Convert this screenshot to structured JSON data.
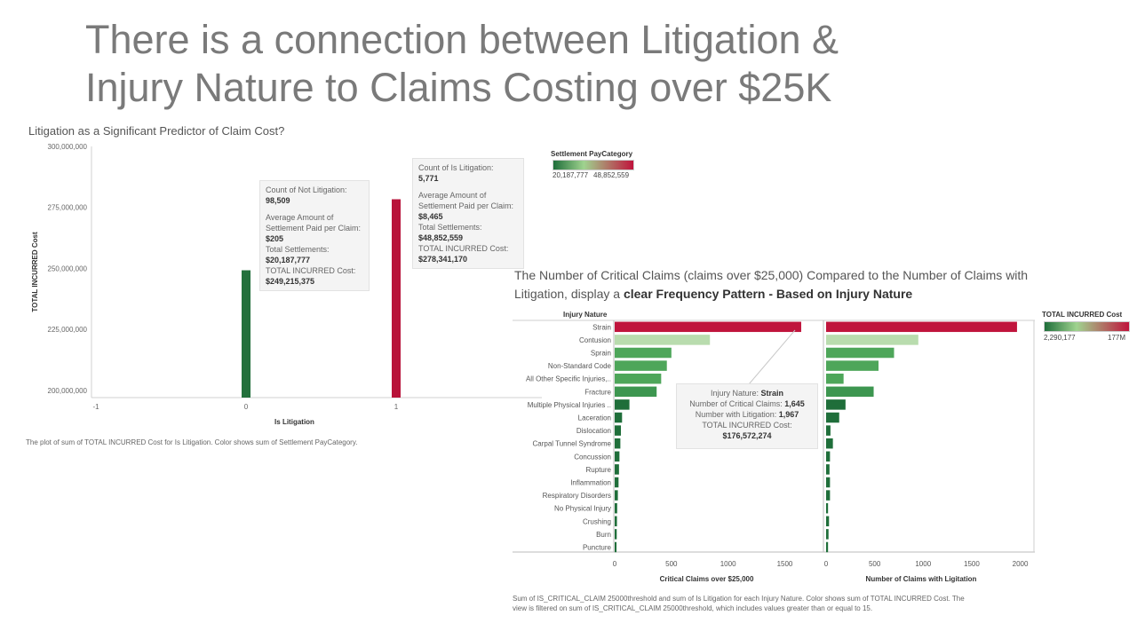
{
  "slide": {
    "title_line1": "There is a connection between Litigation &",
    "title_line2": "Injury Nature to Claims Costing over $25K"
  },
  "chart1": {
    "title": "Litigation as a Significant Predictor of Claim Cost?",
    "caption": "The plot of sum of TOTAL INCURRED Cost for Is Litigation.  Color shows sum of Settlement PayCategory.",
    "tooltip_not": {
      "count_label": "Count of Not Litigation:",
      "count_value": "98,509",
      "avg_label_1": "Average Amount of",
      "avg_label_2": "Settlement Paid per Claim:",
      "avg_value": "$205",
      "total_settle_label": "Total Settlements:",
      "total_settle_value": "$20,187,777",
      "total_cost_label": "TOTAL INCURRED Cost:",
      "total_cost_value": "$249,215,375"
    },
    "tooltip_lit": {
      "count_label": "Count of Is Litigation:",
      "count_value": "5,771",
      "avg_label_1": "Average Amount of",
      "avg_label_2": "Settlement Paid per Claim:",
      "avg_value": "$8,465",
      "total_settle_label": "Total Settlements:",
      "total_settle_value": "$48,852,559",
      "total_cost_label": "TOTAL INCURRED Cost:",
      "total_cost_value": "$278,341,170"
    }
  },
  "legend1": {
    "title": "Settlement PayCategory",
    "min_label": "20,187,777",
    "max_label": "48,852,559",
    "color_low": "#1f6e3a",
    "color_mid": "#9fd38f",
    "color_high": "#c0143c"
  },
  "chart2": {
    "title_plain": "The Number of Critical Claims (claims over $25,000) Compared to the Number of Claims with Litigation, display a ",
    "title_bold": "clear Frequency Pattern - Based on Injury Nature",
    "row_header": "Injury Nature",
    "caption_line1": "Sum of IS_CRITICAL_CLAIM 25000threshold and sum of Is Litigation for each Injury Nature.  Color shows sum of TOTAL INCURRED Cost. The",
    "caption_line2": "view is filtered on sum of IS_CRITICAL_CLAIM 25000threshold, which includes values greater than or equal to 15.",
    "tooltip": {
      "nature_label": "Injury Nature: ",
      "nature_value": "Strain",
      "critical_label": "Number of Critical Claims: ",
      "critical_value": "1,645",
      "litigation_label": "Number with Litigation: ",
      "litigation_value": "1,967",
      "cost_label": "TOTAL INCURRED Cost:",
      "cost_value": "$176,572,274"
    }
  },
  "legend2": {
    "title": "TOTAL INCURRED Cost",
    "min_label": "2,290,177",
    "max_label": "177M",
    "color_low": "#1f6e3a",
    "color_mid": "#9fd38f",
    "color_high": "#c0143c"
  },
  "chart_data": [
    {
      "type": "bar",
      "title": "Litigation as a Significant Predictor of Claim Cost?",
      "xlabel": "Is Litigation",
      "ylabel": "TOTAL INCURRED Cost",
      "categories": [
        0,
        1
      ],
      "values": [
        249215375,
        278341170
      ],
      "colors": [
        "#23703c",
        "#b8133a"
      ],
      "xlim": [
        -1,
        1
      ],
      "x_ticks": [
        "-1",
        "0",
        "1"
      ],
      "ylim": [
        197000000,
        300000000
      ],
      "y_ticks": [
        200000000,
        225000000,
        250000000,
        275000000,
        300000000
      ],
      "y_tick_labels": [
        "200,000,000",
        "225,000,000",
        "250,000,000",
        "275,000,000",
        "300,000,000"
      ]
    },
    {
      "type": "bar",
      "orientation": "horizontal",
      "categories": [
        "Strain",
        "Contusion",
        "Sprain",
        "Non-Standard Code",
        "All Other Specific Injuries,..",
        "Fracture",
        "Multiple Physical Injuries ..",
        "Laceration",
        "Dislocation",
        "Carpal Tunnel Syndrome",
        "Concussion",
        "Rupture",
        "Inflammation",
        "Respiratory Disorders",
        "No Physical Injury",
        "Crushing",
        "Burn",
        "Puncture"
      ],
      "colors": [
        "#c0143c",
        "#b9dcae",
        "#4ea65a",
        "#4ea65a",
        "#4ea65a",
        "#3d9650",
        "#1f6e3a",
        "#1f6e3a",
        "#1f6e3a",
        "#1f6e3a",
        "#1f6e3a",
        "#1f6e3a",
        "#1f6e3a",
        "#1f6e3a",
        "#1f6e3a",
        "#1f6e3a",
        "#1f6e3a",
        "#1f6e3a"
      ],
      "series": [
        {
          "name": "Critical Claims over $25,000",
          "values": [
            1645,
            840,
            500,
            460,
            410,
            370,
            130,
            65,
            55,
            50,
            42,
            38,
            34,
            28,
            22,
            20,
            18,
            16
          ],
          "xlim": [
            0,
            1700
          ],
          "x_ticks": [
            0,
            500,
            1000,
            1500
          ]
        },
        {
          "name": "Number of Claims with Ligitation",
          "values": [
            1967,
            950,
            700,
            540,
            180,
            490,
            200,
            135,
            45,
            70,
            40,
            35,
            40,
            40,
            20,
            30,
            25,
            20
          ],
          "xlim": [
            0,
            2050
          ],
          "x_ticks": [
            0,
            500,
            1000,
            1500,
            2000
          ]
        }
      ]
    }
  ]
}
